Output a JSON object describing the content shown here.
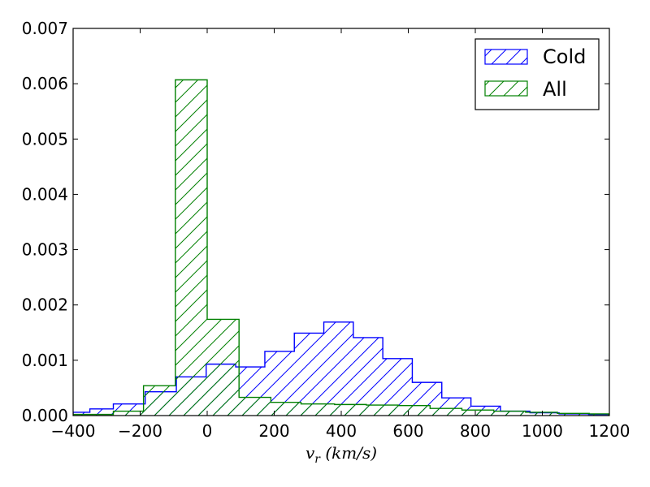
{
  "chart_data": {
    "type": "histogram",
    "title": "",
    "xlabel": "v_r (km/s)",
    "ylabel": "",
    "xlim": [
      -400,
      1200
    ],
    "ylim": [
      0,
      0.007
    ],
    "grid": false,
    "legend_position": "top-right",
    "x_ticks": [
      "−400",
      "−200",
      "0",
      "200",
      "400",
      "600",
      "800",
      "1000",
      "1200"
    ],
    "y_ticks": [
      "0.000",
      "0.001",
      "0.002",
      "0.003",
      "0.004",
      "0.005",
      "0.006",
      "0.007"
    ],
    "series": [
      {
        "name": "Cold",
        "color": "#0000ff",
        "bin_edges": [
          -400,
          -350,
          -280,
          -185,
          -92,
          -3,
          85,
          172,
          260,
          348,
          436,
          524,
          612,
          700,
          787,
          875,
          963,
          1050,
          1138,
          1200
        ],
        "values": [
          6e-05,
          0.00012,
          0.00021,
          0.00043,
          0.0007,
          0.00093,
          0.00088,
          0.00116,
          0.00149,
          0.00169,
          0.00141,
          0.00103,
          0.0006,
          0.00032,
          0.00017,
          8e-05,
          5e-05,
          3e-05,
          2e-05
        ]
      },
      {
        "name": "All",
        "color": "#008000",
        "bin_edges": [
          -400,
          -280,
          -190,
          -95,
          0,
          95,
          190,
          280,
          380,
          475,
          570,
          665,
          760,
          855,
          950,
          1045,
          1140,
          1200
        ],
        "values": [
          2e-05,
          8e-05,
          0.00054,
          0.00607,
          0.00174,
          0.00033,
          0.00024,
          0.00021,
          0.0002,
          0.00019,
          0.00018,
          0.00013,
          0.0001,
          8e-05,
          6e-05,
          4e-05,
          3e-05
        ]
      }
    ]
  },
  "legend": {
    "items": [
      {
        "label": "Cold",
        "color": "#0000ff"
      },
      {
        "label": "All",
        "color": "#008000"
      }
    ]
  }
}
